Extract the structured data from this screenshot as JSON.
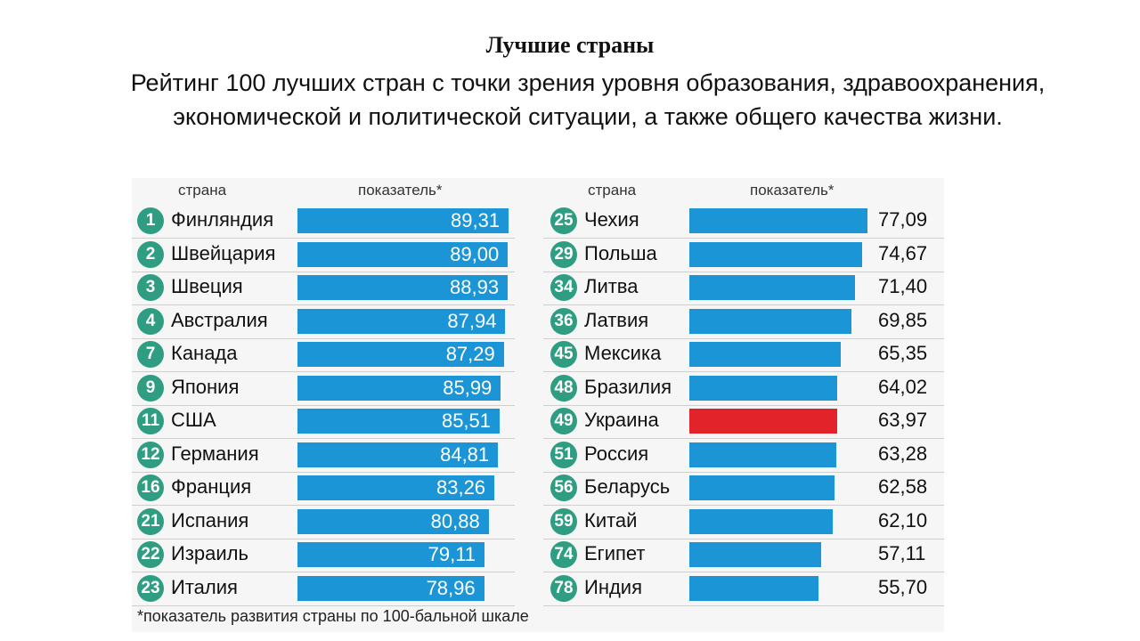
{
  "title": "Лучшие страны",
  "subtitle": "Рейтинг 100 лучших стран с точки зрения уровня образования, здравоохранения, экономической и политической ситуации, а также общего качества жизни.",
  "headers": {
    "left_country": "страна",
    "left_value": "показатель*",
    "right_country": "страна",
    "right_value": "показатель*"
  },
  "footnote": "*показатель развития страны по 100-бальной шкале",
  "colors": {
    "bar": "#1b95d6",
    "highlight": "#e3232a",
    "badge": "#2e9d82"
  },
  "chart_data": {
    "type": "bar",
    "title": "Лучшие страны",
    "xlabel": "",
    "ylabel": "показатель*",
    "left": [
      {
        "rank": "1",
        "country": "Финляндия",
        "value": 89.31,
        "label": "89,31"
      },
      {
        "rank": "2",
        "country": "Швейцария",
        "value": 89.0,
        "label": "89,00"
      },
      {
        "rank": "3",
        "country": "Швеция",
        "value": 88.93,
        "label": "88,93"
      },
      {
        "rank": "4",
        "country": "Австралия",
        "value": 87.94,
        "label": "87,94"
      },
      {
        "rank": "7",
        "country": "Канада",
        "value": 87.29,
        "label": "87,29"
      },
      {
        "rank": "9",
        "country": "Япония",
        "value": 85.99,
        "label": "85,99"
      },
      {
        "rank": "11",
        "country": "США",
        "value": 85.51,
        "label": "85,51"
      },
      {
        "rank": "12",
        "country": "Германия",
        "value": 84.81,
        "label": "84,81"
      },
      {
        "rank": "16",
        "country": "Франция",
        "value": 83.26,
        "label": "83,26"
      },
      {
        "rank": "21",
        "country": "Испания",
        "value": 80.88,
        "label": "80,88"
      },
      {
        "rank": "22",
        "country": "Израиль",
        "value": 79.11,
        "label": "79,11"
      },
      {
        "rank": "23",
        "country": "Италия",
        "value": 78.96,
        "label": "78,96"
      }
    ],
    "right": [
      {
        "rank": "25",
        "country": "Чехия",
        "value": 77.09,
        "label": "77,09"
      },
      {
        "rank": "29",
        "country": "Польша",
        "value": 74.67,
        "label": "74,67"
      },
      {
        "rank": "34",
        "country": "Литва",
        "value": 71.4,
        "label": "71,40"
      },
      {
        "rank": "36",
        "country": "Латвия",
        "value": 69.85,
        "label": "69,85"
      },
      {
        "rank": "45",
        "country": "Мексика",
        "value": 65.35,
        "label": "65,35"
      },
      {
        "rank": "48",
        "country": "Бразилия",
        "value": 64.02,
        "label": "64,02"
      },
      {
        "rank": "49",
        "country": "Украина",
        "value": 63.97,
        "label": "63,97",
        "highlight": true
      },
      {
        "rank": "51",
        "country": "Россия",
        "value": 63.28,
        "label": "63,28"
      },
      {
        "rank": "56",
        "country": "Беларусь",
        "value": 62.58,
        "label": "62,58"
      },
      {
        "rank": "59",
        "country": "Китай",
        "value": 62.1,
        "label": "62,10"
      },
      {
        "rank": "74",
        "country": "Египет",
        "value": 57.11,
        "label": "57,11"
      },
      {
        "rank": "78",
        "country": "Индия",
        "value": 55.7,
        "label": "55,70"
      }
    ]
  }
}
